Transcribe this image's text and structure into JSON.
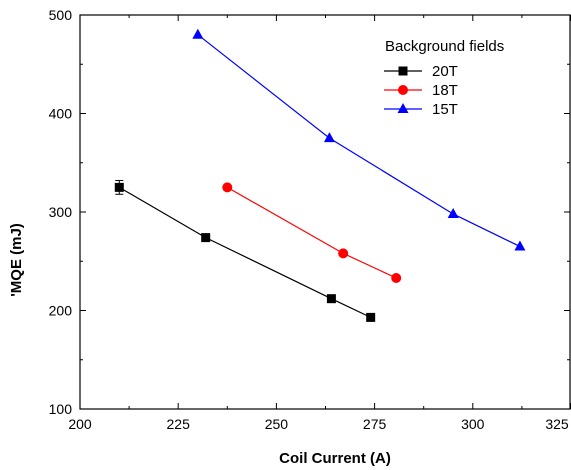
{
  "chart_data": {
    "type": "line",
    "title": "",
    "xlabel": "Coil Current (A)",
    "ylabel": "'MQE (mJ)",
    "xlim": [
      200,
      325
    ],
    "ylim": [
      100,
      500
    ],
    "xticks": [
      200,
      225,
      250,
      275,
      300,
      325
    ],
    "yticks": [
      100,
      200,
      300,
      400,
      500
    ],
    "grid": false,
    "legend": {
      "title": "Background fields",
      "position": "top-right"
    },
    "series": [
      {
        "name": "20T",
        "color": "#000000",
        "marker": "square",
        "x": [
          210,
          232,
          264,
          274
        ],
        "y": [
          325,
          274,
          212,
          193
        ],
        "error": [
          7,
          0,
          0,
          0
        ]
      },
      {
        "name": "18T",
        "color": "#ff0000",
        "marker": "circle",
        "x": [
          237.5,
          267,
          280.5
        ],
        "y": [
          325,
          258,
          233
        ],
        "error": [
          0,
          0,
          0
        ]
      },
      {
        "name": "15T",
        "color": "#0000ff",
        "marker": "triangle",
        "x": [
          230,
          263.5,
          295,
          312
        ],
        "y": [
          480,
          375,
          298,
          265
        ],
        "error": [
          0,
          0,
          0,
          0
        ]
      }
    ]
  }
}
